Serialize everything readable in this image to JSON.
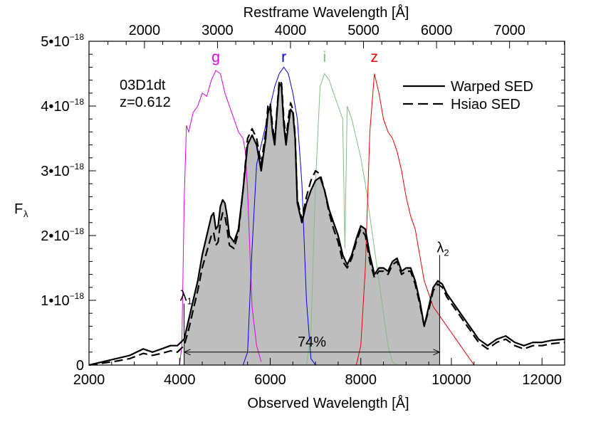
{
  "chart_data": {
    "type": "line",
    "title": "",
    "xlabel": "Observed Wavelength [Å]",
    "ylabel": "F",
    "ylabel_sub": "λ",
    "xlim": [
      2000,
      12500
    ],
    "ylim": [
      0,
      5e-18
    ],
    "x_ticks": [
      2000,
      4000,
      6000,
      8000,
      10000,
      12000
    ],
    "y_ticks": [
      {
        "value": 0,
        "label": "0",
        "exp": ""
      },
      {
        "value": 1e-18,
        "label": "1•10",
        "exp": "−18"
      },
      {
        "value": 2e-18,
        "label": "2•10",
        "exp": "−18"
      },
      {
        "value": 3e-18,
        "label": "3•10",
        "exp": "−18"
      },
      {
        "value": 4e-18,
        "label": "4•10",
        "exp": "−18"
      },
      {
        "value": 5e-18,
        "label": "5•10",
        "exp": "−18"
      }
    ],
    "top_axis": {
      "label": "Restframe Wavelength [Å]",
      "redshift": 0.612,
      "ticks": [
        2000,
        3000,
        4000,
        5000,
        6000,
        7000
      ]
    },
    "annotations": {
      "object": "03D1dt",
      "redshift_label": "z=0.612",
      "fraction_label": "74%",
      "lambda1": "λ",
      "lambda1_sub": "1",
      "lambda2": "λ",
      "lambda2_sub": "2",
      "lambda1_x": 4100,
      "lambda2_x": 9740
    },
    "legend": {
      "placement": "top-right"
    },
    "series": [
      {
        "name": "Warped SED",
        "style": "solid",
        "color": "#000000",
        "x": [
          2000,
          2300,
          2600,
          2900,
          3200,
          3400,
          3600,
          3800,
          3950,
          4100,
          4200,
          4300,
          4400,
          4500,
          4600,
          4700,
          4750,
          4800,
          4850,
          4900,
          4950,
          5000,
          5050,
          5100,
          5200,
          5300,
          5400,
          5500,
          5600,
          5700,
          5800,
          5900,
          5950,
          6000,
          6050,
          6100,
          6150,
          6200,
          6250,
          6300,
          6350,
          6400,
          6450,
          6500,
          6550,
          6600,
          6700,
          6800,
          6900,
          7000,
          7100,
          7200,
          7300,
          7400,
          7500,
          7600,
          7700,
          7800,
          7900,
          8000,
          8100,
          8200,
          8300,
          8400,
          8500,
          8600,
          8700,
          8800,
          8900,
          9000,
          9100,
          9200,
          9300,
          9400,
          9500,
          9600,
          9700,
          9800,
          9900,
          10000,
          10100,
          10200,
          10300,
          10400,
          10500,
          10600,
          10700,
          10800,
          10900,
          11000,
          11200,
          11400,
          11600,
          11800,
          12000,
          12200,
          12500
        ],
        "y": [
          0.0,
          0.05,
          0.1,
          0.15,
          0.25,
          0.2,
          0.25,
          0.3,
          0.3,
          0.4,
          0.7,
          1.0,
          1.3,
          1.7,
          2.0,
          2.3,
          2.35,
          2.1,
          2.15,
          2.45,
          2.55,
          2.5,
          2.3,
          2.0,
          1.9,
          2.1,
          2.7,
          3.4,
          3.55,
          3.4,
          3.0,
          3.5,
          3.9,
          4.0,
          3.6,
          3.4,
          3.9,
          4.35,
          4.3,
          3.7,
          3.4,
          3.7,
          3.95,
          3.9,
          3.5,
          2.5,
          2.2,
          2.5,
          2.7,
          2.85,
          2.9,
          2.7,
          2.4,
          2.2,
          2.0,
          1.7,
          1.55,
          1.7,
          1.95,
          2.15,
          2.1,
          1.7,
          1.4,
          1.5,
          1.5,
          1.45,
          1.6,
          1.65,
          1.45,
          1.5,
          1.5,
          1.3,
          1.0,
          0.6,
          0.9,
          1.2,
          1.3,
          1.25,
          1.1,
          1.0,
          0.9,
          0.8,
          0.7,
          0.6,
          0.5,
          0.4,
          0.35,
          0.3,
          0.35,
          0.4,
          0.45,
          0.35,
          0.3,
          0.35,
          0.35,
          0.38,
          0.4
        ]
      },
      {
        "name": "Hsiao SED",
        "style": "dashed",
        "color": "#000000",
        "x": [
          2000,
          2300,
          2600,
          2900,
          3200,
          3400,
          3600,
          3800,
          3950,
          4100,
          4200,
          4300,
          4400,
          4500,
          4600,
          4700,
          4750,
          4800,
          4850,
          4900,
          4950,
          5000,
          5050,
          5100,
          5200,
          5300,
          5400,
          5500,
          5600,
          5700,
          5800,
          5900,
          5950,
          6000,
          6050,
          6100,
          6150,
          6200,
          6250,
          6300,
          6350,
          6400,
          6450,
          6500,
          6550,
          6600,
          6700,
          6800,
          6900,
          7000,
          7100,
          7200,
          7300,
          7400,
          7500,
          7600,
          7700,
          7800,
          7900,
          8000,
          8100,
          8200,
          8300,
          8400,
          8500,
          8600,
          8700,
          8800,
          8900,
          9000,
          9100,
          9200,
          9300,
          9400,
          9500,
          9600,
          9700,
          9800,
          9900,
          10000,
          10100,
          10200,
          10300,
          10400,
          10500,
          10600,
          10700,
          10800,
          10900,
          11000,
          11200,
          11400,
          11600,
          11800,
          12000,
          12200,
          12500
        ],
        "y": [
          0.0,
          0.03,
          0.06,
          0.1,
          0.18,
          0.15,
          0.18,
          0.22,
          0.2,
          0.3,
          0.55,
          0.85,
          1.15,
          1.5,
          1.75,
          2.0,
          2.05,
          1.85,
          1.9,
          2.2,
          2.35,
          2.3,
          2.1,
          1.85,
          1.8,
          2.05,
          2.7,
          3.5,
          3.65,
          3.5,
          3.1,
          3.6,
          4.0,
          4.05,
          3.7,
          3.45,
          3.95,
          4.4,
          4.35,
          3.8,
          3.5,
          3.8,
          4.05,
          3.95,
          3.55,
          2.55,
          2.25,
          2.6,
          2.85,
          3.0,
          2.95,
          2.7,
          2.35,
          2.1,
          1.9,
          1.6,
          1.5,
          1.65,
          1.9,
          2.1,
          2.0,
          1.6,
          1.35,
          1.45,
          1.45,
          1.4,
          1.55,
          1.6,
          1.4,
          1.45,
          1.45,
          1.25,
          0.95,
          0.6,
          0.85,
          1.15,
          1.25,
          1.2,
          1.05,
          0.95,
          0.85,
          0.75,
          0.65,
          0.55,
          0.45,
          0.35,
          0.3,
          0.25,
          0.3,
          0.35,
          0.4,
          0.3,
          0.25,
          0.3,
          0.3,
          0.33,
          0.35
        ]
      }
    ],
    "filters": [
      {
        "name": "g",
        "color": "#e000e0",
        "x": [
          4000,
          4050,
          4100,
          4150,
          4200,
          4300,
          4400,
          4500,
          4600,
          4700,
          4800,
          4900,
          5000,
          5100,
          5200,
          5300,
          5400,
          5450,
          5500,
          5550,
          5600,
          5700,
          5800
        ],
        "y": [
          0.0,
          0.3,
          2.5,
          3.7,
          3.6,
          3.9,
          4.0,
          4.2,
          4.15,
          4.4,
          4.55,
          4.5,
          4.2,
          4.0,
          3.8,
          3.6,
          3.5,
          3.3,
          2.7,
          1.8,
          0.9,
          0.3,
          0.05
        ]
      },
      {
        "name": "r",
        "color": "#0000ee",
        "x": [
          5400,
          5500,
          5600,
          5700,
          5800,
          5900,
          6000,
          6100,
          6200,
          6300,
          6400,
          6500,
          6600,
          6700,
          6800,
          6900,
          7000
        ],
        "y": [
          0.0,
          0.2,
          1.8,
          3.1,
          3.4,
          3.7,
          4.0,
          4.3,
          4.5,
          4.6,
          4.5,
          4.2,
          3.8,
          2.8,
          1.0,
          0.1,
          0.0
        ]
      },
      {
        "name": "i",
        "color": "#7fbf7f",
        "x": [
          6800,
          6900,
          7000,
          7100,
          7200,
          7300,
          7400,
          7500,
          7600,
          7650,
          7700,
          7800,
          7900,
          8000,
          8100,
          8200,
          8300,
          8400,
          8500,
          8600,
          8700,
          8800
        ],
        "y": [
          0.0,
          0.5,
          2.8,
          4.3,
          4.5,
          4.4,
          4.2,
          4.0,
          3.8,
          1.8,
          4.0,
          3.8,
          3.5,
          3.2,
          2.8,
          2.3,
          1.8,
          1.3,
          0.8,
          0.3,
          0.05,
          0.0
        ]
      },
      {
        "name": "z",
        "color": "#ee0000",
        "x": [
          7900,
          8000,
          8100,
          8200,
          8300,
          8400,
          8500,
          8600,
          8700,
          8800,
          8900,
          9000,
          9100,
          9200,
          9300,
          9400,
          9500,
          9600,
          9700,
          9800,
          9900,
          10000,
          10200,
          10400,
          10500
        ],
        "y": [
          0.0,
          0.3,
          1.5,
          3.6,
          4.5,
          4.2,
          3.8,
          3.6,
          3.5,
          3.3,
          3.0,
          2.6,
          2.3,
          2.1,
          1.7,
          1.3,
          1.1,
          0.9,
          0.8,
          0.7,
          0.6,
          0.5,
          0.3,
          0.1,
          0.0
        ]
      }
    ]
  }
}
